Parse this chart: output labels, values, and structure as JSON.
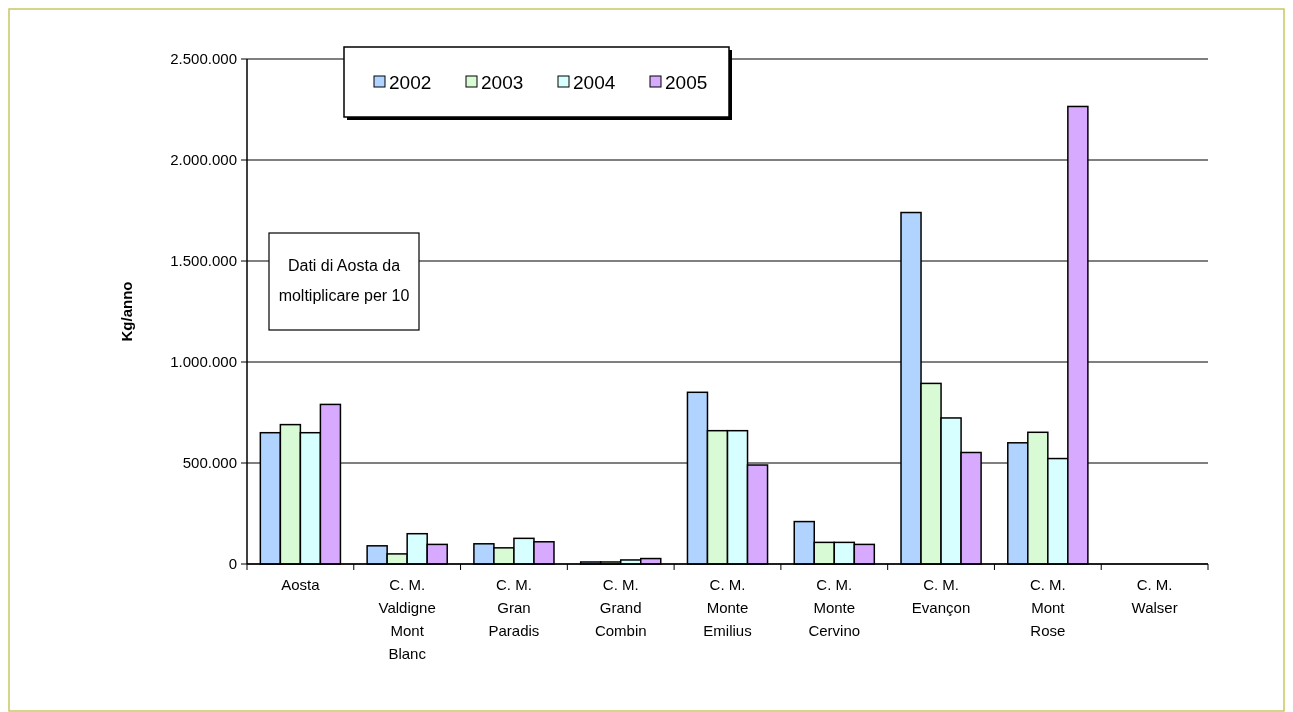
{
  "chart_data": {
    "type": "bar",
    "ylabel": "Kg/anno",
    "categories": [
      "Aosta",
      "C. M. Valdigne Mont Blanc",
      "C. M. Gran Paradis",
      "C. M. Grand Combin",
      "C. M. Monte Emilius",
      "C. M. Monte Cervino",
      "C. M. Evançon",
      "C. M. Mont Rose",
      "C. M. Walser"
    ],
    "series": [
      {
        "name": "2002",
        "color": "#b0d4ff",
        "values": [
          650000,
          90000,
          100000,
          10000,
          850000,
          210000,
          1740000,
          600000,
          0
        ]
      },
      {
        "name": "2003",
        "color": "#d8fad4",
        "values": [
          690000,
          50000,
          80000,
          10000,
          660000,
          107000,
          894000,
          652000,
          0
        ]
      },
      {
        "name": "2004",
        "color": "#d8ffff",
        "values": [
          650000,
          150000,
          127000,
          20000,
          660000,
          107000,
          723000,
          522000,
          0
        ]
      },
      {
        "name": "2005",
        "color": "#d8aaff",
        "values": [
          790000,
          97000,
          110000,
          27000,
          490000,
          97000,
          552000,
          2265000,
          0
        ]
      }
    ],
    "ylim": [
      0,
      2500000
    ],
    "yticks": [
      {
        "value": 0,
        "label": "0"
      },
      {
        "value": 500000,
        "label": "500.000"
      },
      {
        "value": 1000000,
        "label": "1.000.000"
      },
      {
        "value": 1500000,
        "label": "1.500.000"
      },
      {
        "value": 2000000,
        "label": "2.000.000"
      },
      {
        "value": 2500000,
        "label": "2.500.000"
      }
    ],
    "grid": "y",
    "legend": "top",
    "annotations": [
      "Dati di Aosta da moltiplicare per 10"
    ]
  }
}
